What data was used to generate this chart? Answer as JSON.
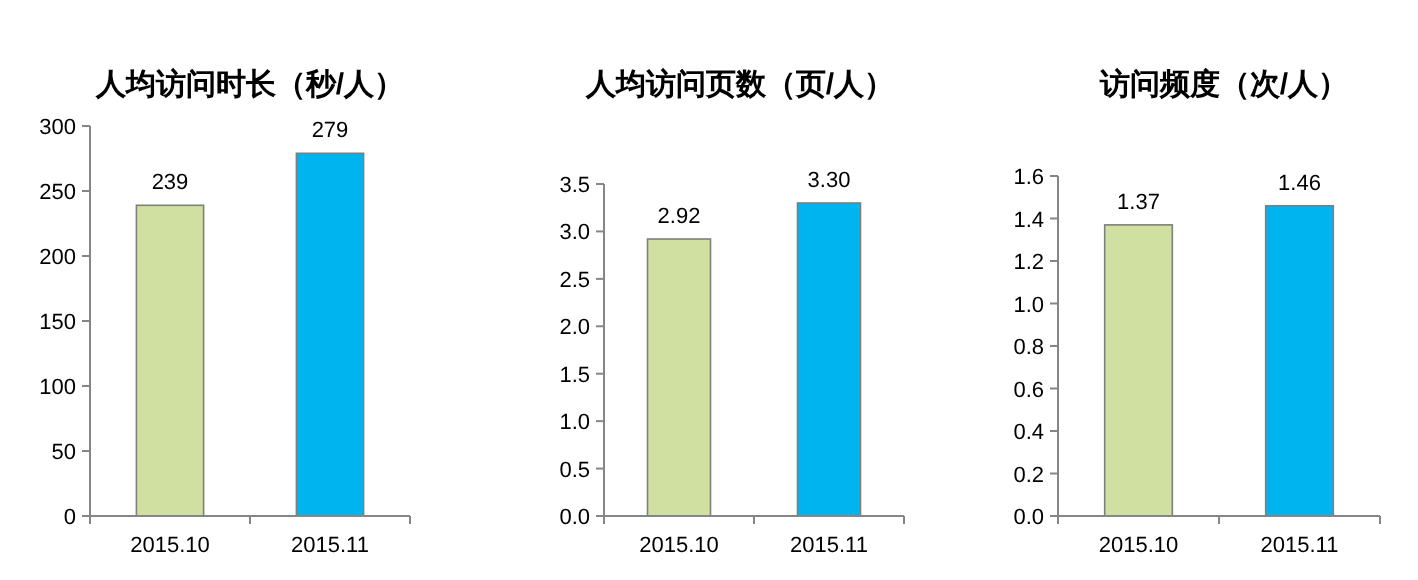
{
  "chart_data": [
    {
      "type": "bar",
      "title": "人均访问时长（秒/人）",
      "categories": [
        "2015.10",
        "2015.11"
      ],
      "values": [
        239,
        279
      ],
      "colors": [
        "#cfe0a0",
        "#00b4f0"
      ],
      "value_labels": [
        "239",
        "279"
      ],
      "ylim": [
        0,
        300
      ],
      "yticks": [
        0,
        50,
        100,
        150,
        200,
        250,
        300
      ],
      "grid": false
    },
    {
      "type": "bar",
      "title": "人均访问页数（页/人）",
      "categories": [
        "2015.10",
        "2015.11"
      ],
      "values": [
        2.92,
        3.3
      ],
      "colors": [
        "#cfe0a0",
        "#00b4f0"
      ],
      "value_labels": [
        "2.92",
        "3.30"
      ],
      "ylim": [
        0,
        3.5
      ],
      "yticks": [
        {
          "value": 0,
          "label": "0.0"
        },
        {
          "value": 0.5,
          "label": "0.5"
        },
        {
          "value": 1,
          "label": "1.0"
        },
        {
          "value": 1.5,
          "label": "1.5"
        },
        {
          "value": 2,
          "label": "2.0"
        },
        {
          "value": 2.5,
          "label": "2.5"
        },
        {
          "value": 3,
          "label": "3.0"
        },
        {
          "value": 3.5,
          "label": "3.5"
        }
      ],
      "grid": false
    },
    {
      "type": "bar",
      "title": "访问频度（次/人）",
      "categories": [
        "2015.10",
        "2015.11"
      ],
      "values": [
        1.37,
        1.46
      ],
      "colors": [
        "#cfe0a0",
        "#00b4f0"
      ],
      "value_labels": [
        "1.37",
        "1.46"
      ],
      "ylim": [
        0,
        1.6
      ],
      "yticks": [
        {
          "value": 0,
          "label": "0.0"
        },
        {
          "value": 0.2,
          "label": "0.2"
        },
        {
          "value": 0.4,
          "label": "0.4"
        },
        {
          "value": 0.6,
          "label": "0.6"
        },
        {
          "value": 0.8,
          "label": "0.8"
        },
        {
          "value": 1,
          "label": "1.0"
        },
        {
          "value": 1.2,
          "label": "1.2"
        },
        {
          "value": 1.4,
          "label": "1.4"
        },
        {
          "value": 1.6,
          "label": "1.6"
        }
      ],
      "grid": false
    }
  ]
}
